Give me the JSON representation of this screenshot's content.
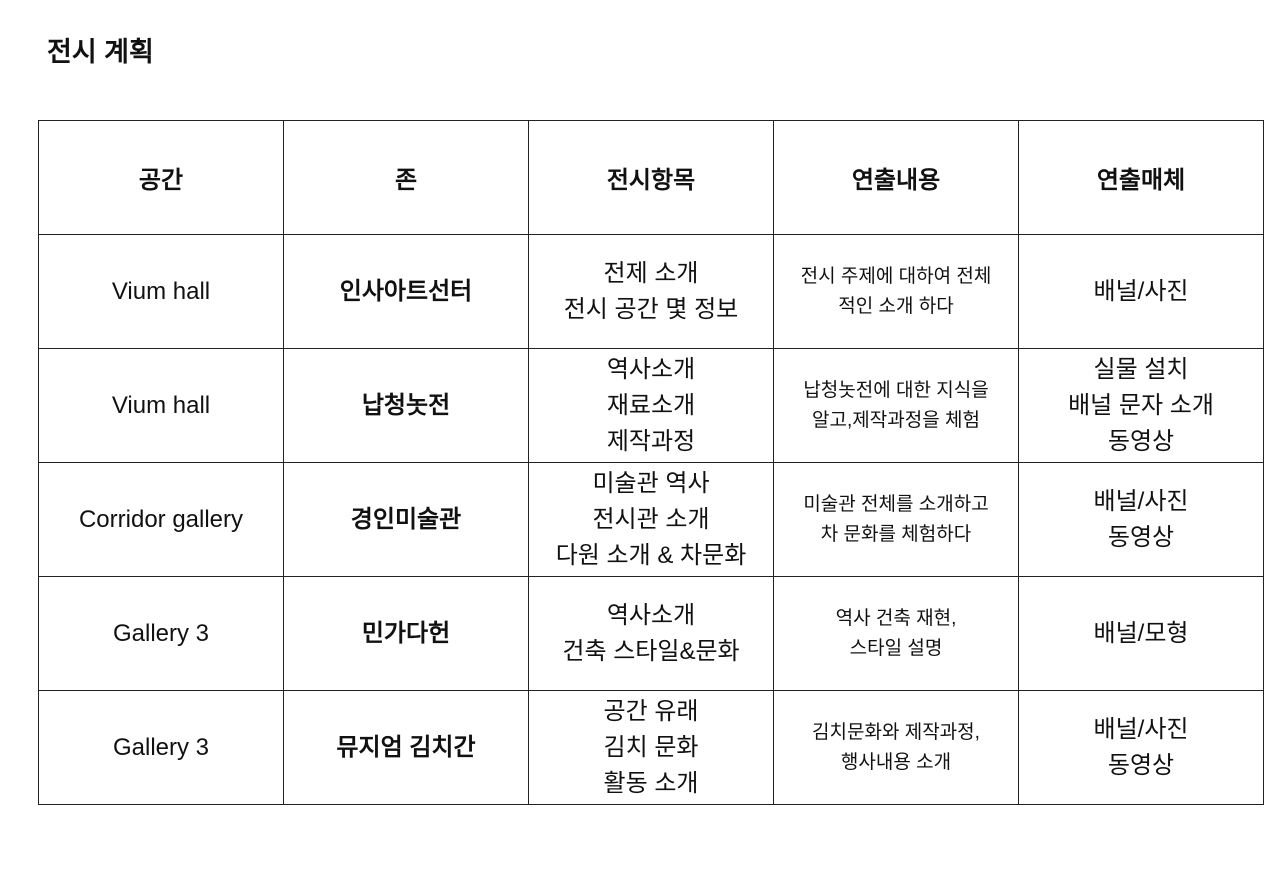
{
  "title": "전시 계획",
  "table": {
    "headers": [
      "공간",
      "존",
      "전시항목",
      "연출내용",
      "연출매체"
    ],
    "rows": [
      {
        "space": "Vium hall",
        "zone": "인사아트선터",
        "items": "전제 소개\n전시 공간 몇 정보",
        "desc": "전시 주제에 대하여 전체\n적인 소개 하다",
        "media": "배널/사진"
      },
      {
        "space": "Vium hall",
        "zone": "납청놋전",
        "items": "역사소개\n재료소개\n제작과정",
        "desc": "납청놋전에 대한 지식을\n알고,제작과정을 체험",
        "media": "실물 설치\n배널 문자 소개\n동영상"
      },
      {
        "space": "Corridor gallery",
        "zone": "경인미술관",
        "items": "미술관 역사\n전시관 소개\n다원 소개 & 차문화",
        "desc": "미술관 전체를 소개하고\n차 문화를 체험하다",
        "media": "배널/사진\n동영상"
      },
      {
        "space": "Gallery 3",
        "zone": "민가다헌",
        "items": "역사소개\n건축 스타일&문화",
        "desc": "역사 건축 재현,\n스타일 설명",
        "media": "배널/모형"
      },
      {
        "space": "Gallery 3",
        "zone": "뮤지엄 김치간",
        "items": "공간 유래\n김치 문화\n활동 소개",
        "desc": "김치문화와 제작과정,\n행사내용 소개",
        "media": "배널/사진\n동영상"
      }
    ]
  }
}
